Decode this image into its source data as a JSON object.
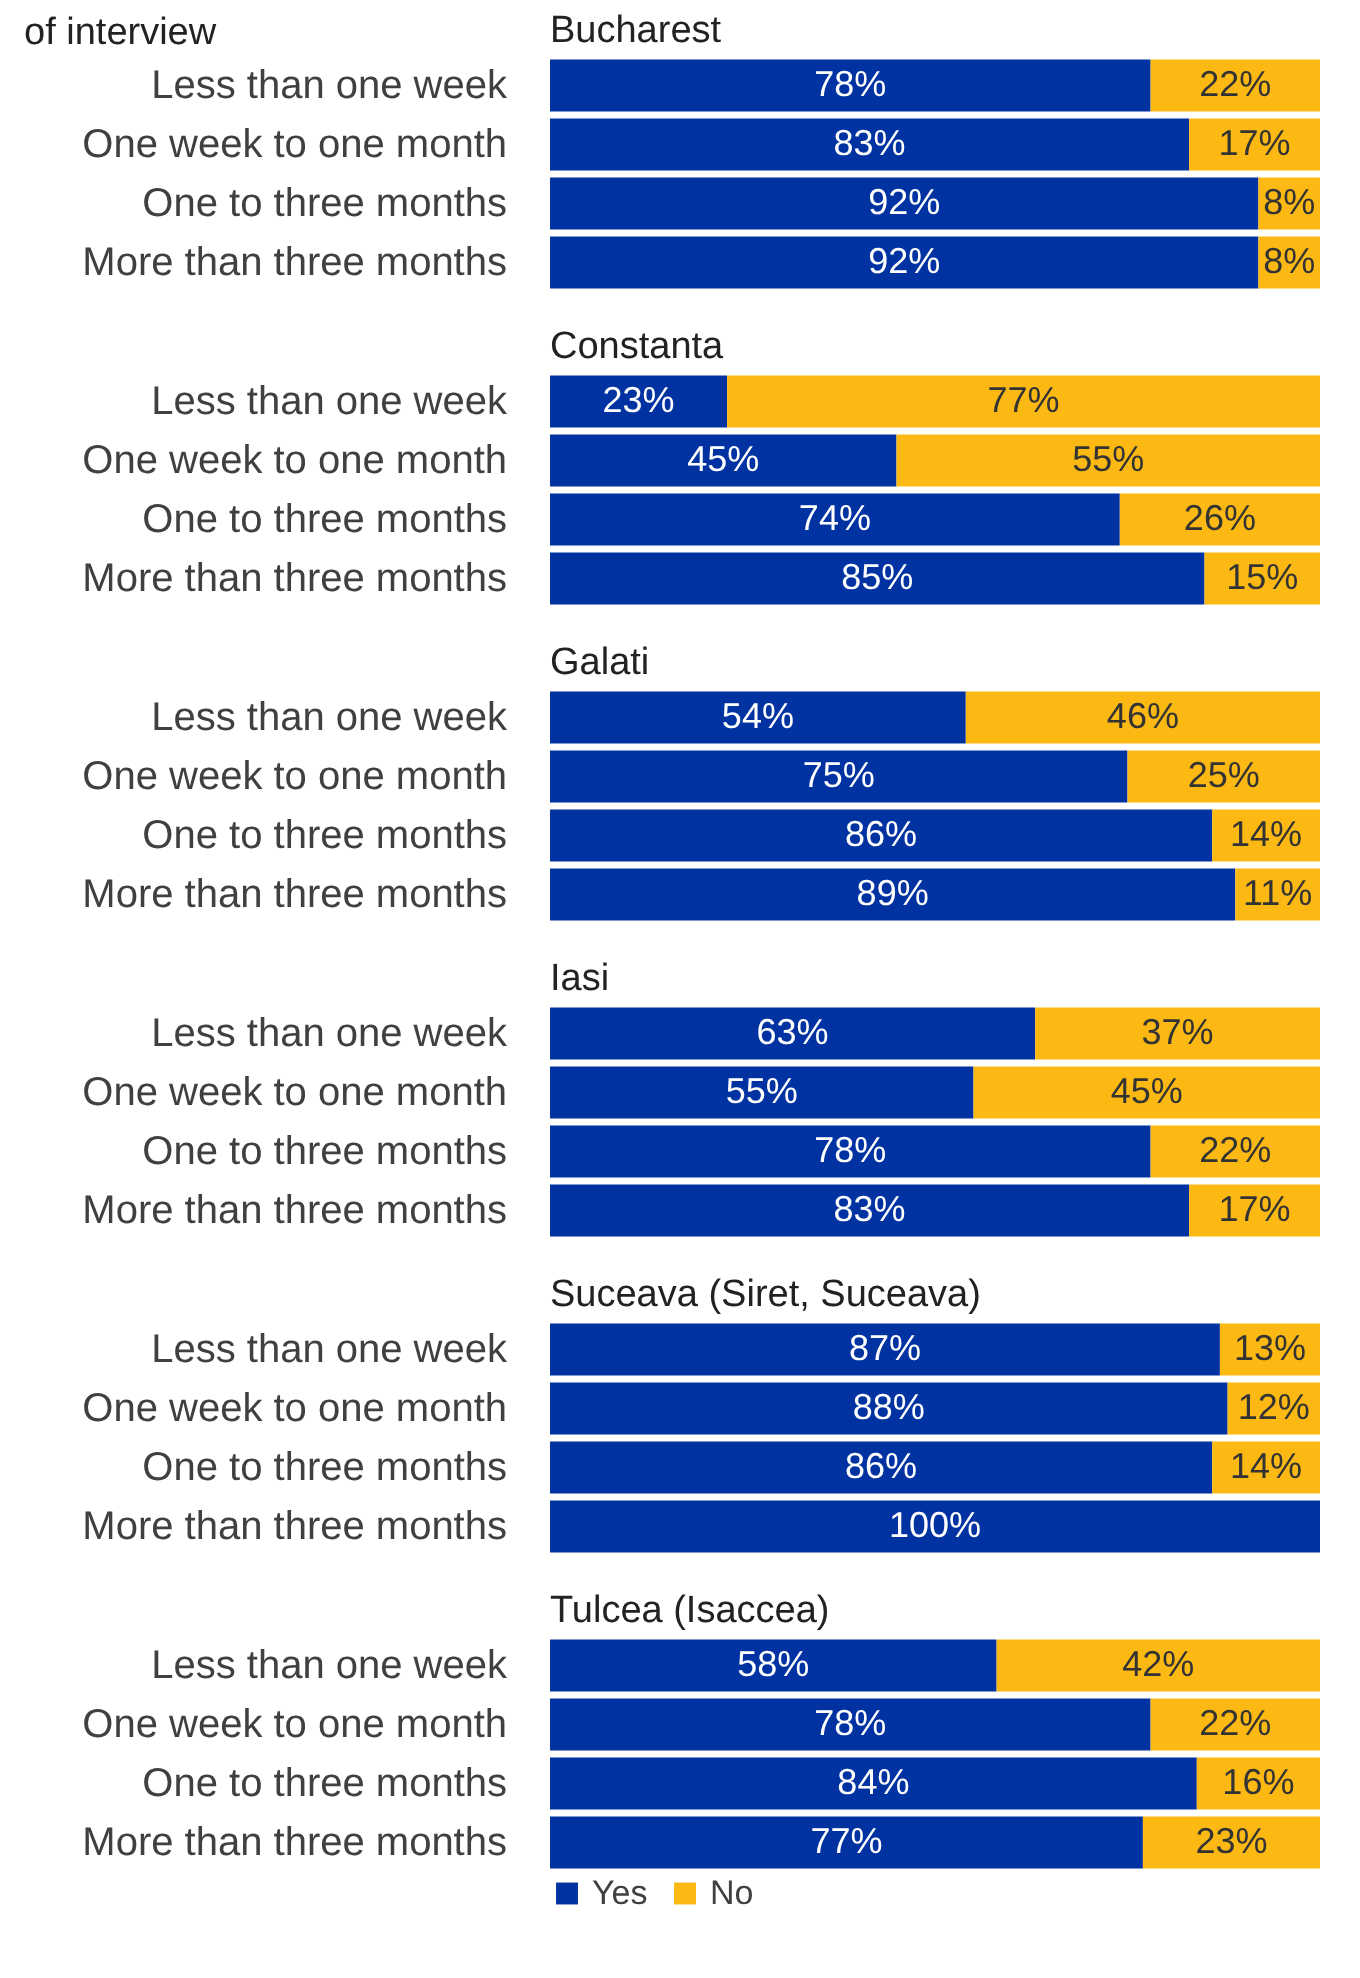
{
  "chart_data": [
    {
      "type": "bar",
      "orientation": "horizontal",
      "stacked": true,
      "title": "Bucharest",
      "annotations": [
        "of interview"
      ],
      "categories": [
        "Less than one week",
        "One week to one month",
        "One to three months",
        "More than three months"
      ],
      "xlim": [
        0,
        100
      ],
      "tick_labels": "y",
      "legend": false,
      "series": [
        {
          "color": "#0033a1",
          "values": [
            78,
            83,
            92,
            92
          ],
          "value_labels": [
            "78%",
            "83%",
            "92%",
            "92%"
          ]
        },
        {
          "color": "#fdb913",
          "values": [
            22,
            17,
            8,
            8
          ],
          "value_labels": [
            "22%",
            "17%",
            "8%",
            "8%"
          ]
        }
      ]
    },
    {
      "type": "bar",
      "orientation": "horizontal",
      "stacked": true,
      "title": "Constanta",
      "categories": [
        "Less than one week",
        "One week to one month",
        "One to three months",
        "More than three months"
      ],
      "xlim": [
        0,
        100
      ],
      "tick_labels": "y",
      "legend": false,
      "series": [
        {
          "color": "#0033a1",
          "values": [
            23,
            45,
            74,
            85
          ],
          "value_labels": [
            "23%",
            "45%",
            "74%",
            "85%"
          ]
        },
        {
          "color": "#fdb913",
          "values": [
            77,
            55,
            26,
            15
          ],
          "value_labels": [
            "77%",
            "55%",
            "26%",
            "15%"
          ]
        }
      ]
    },
    {
      "type": "bar",
      "orientation": "horizontal",
      "stacked": true,
      "title": "Galati",
      "categories": [
        "Less than one week",
        "One week to one month",
        "One to three months",
        "More than three months"
      ],
      "xlim": [
        0,
        100
      ],
      "tick_labels": "y",
      "legend": false,
      "series": [
        {
          "color": "#0033a1",
          "values": [
            54,
            75,
            86,
            89
          ],
          "value_labels": [
            "54%",
            "75%",
            "86%",
            "89%"
          ]
        },
        {
          "color": "#fdb913",
          "values": [
            46,
            25,
            14,
            11
          ],
          "value_labels": [
            "46%",
            "25%",
            "14%",
            "11%"
          ]
        }
      ]
    },
    {
      "type": "bar",
      "orientation": "horizontal",
      "stacked": true,
      "title": "Iasi",
      "categories": [
        "Less than one week",
        "One week to one month",
        "One to three months",
        "More than three months"
      ],
      "xlim": [
        0,
        100
      ],
      "tick_labels": "y",
      "legend": false,
      "series": [
        {
          "color": "#0033a1",
          "values": [
            63,
            55,
            78,
            83
          ],
          "value_labels": [
            "63%",
            "55%",
            "78%",
            "83%"
          ]
        },
        {
          "color": "#fdb913",
          "values": [
            37,
            45,
            22,
            17
          ],
          "value_labels": [
            "37%",
            "45%",
            "22%",
            "17%"
          ]
        }
      ]
    },
    {
      "type": "bar",
      "orientation": "horizontal",
      "stacked": true,
      "title": "Suceava (Siret, Suceava)",
      "categories": [
        "Less than one week",
        "One week to one month",
        "One to three months",
        "More than three months"
      ],
      "xlim": [
        0,
        100
      ],
      "tick_labels": "y",
      "legend": false,
      "series": [
        {
          "color": "#0033a1",
          "values": [
            87,
            88,
            86,
            100
          ],
          "value_labels": [
            "87%",
            "88%",
            "86%",
            "100%"
          ]
        },
        {
          "color": "#fdb913",
          "values": [
            13,
            12,
            14,
            0
          ],
          "value_labels": [
            "13%",
            "12%",
            "14%",
            null
          ]
        }
      ]
    },
    {
      "type": "bar",
      "orientation": "horizontal",
      "stacked": true,
      "title": "Tulcea (Isaccea)",
      "categories": [
        "Less than one week",
        "One week to one month",
        "One to three months",
        "More than three months"
      ],
      "xlim": [
        0,
        100
      ],
      "tick_labels": "y",
      "legend": "bottom",
      "series": [
        {
          "name": "Yes",
          "color": "#0033a1",
          "values": [
            58,
            78,
            84,
            77
          ],
          "value_labels": [
            "58%",
            "78%",
            "84%",
            "77%"
          ]
        },
        {
          "name": "No",
          "color": "#fdb913",
          "values": [
            42,
            22,
            16,
            23
          ],
          "value_labels": [
            "42%",
            "22%",
            "16%",
            "23%"
          ]
        }
      ]
    }
  ]
}
